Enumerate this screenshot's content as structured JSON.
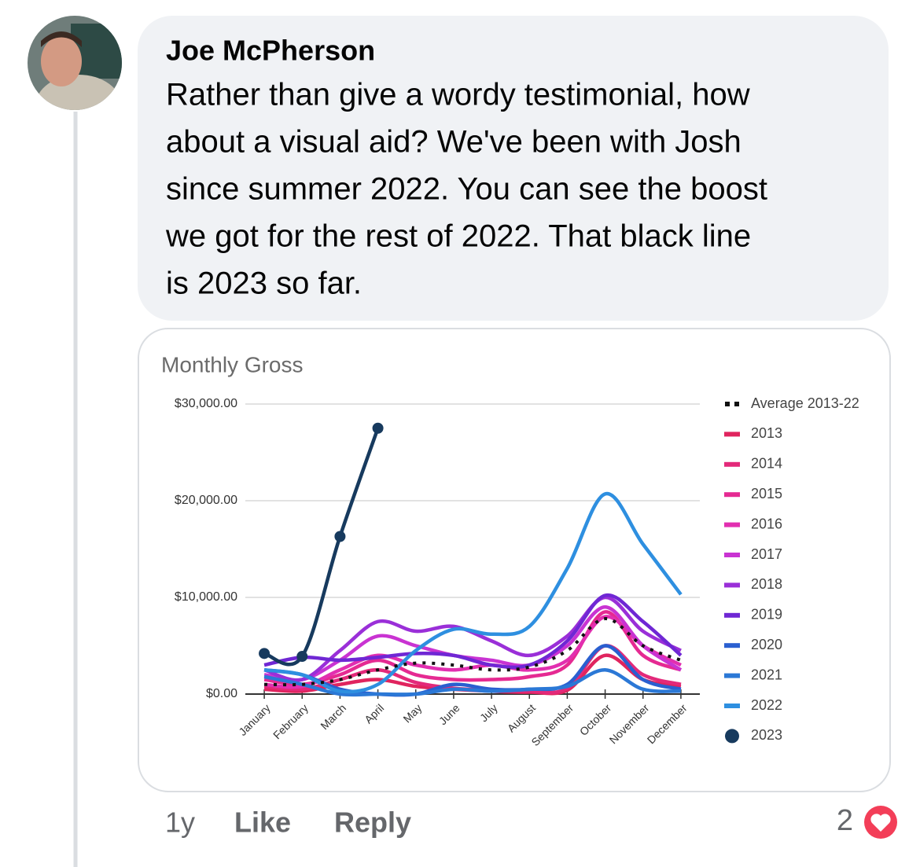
{
  "comment": {
    "author": "Joe McPherson",
    "body_lines": [
      "Rather than give a wordy testimonial, how",
      "about a visual aid? We've been with Josh",
      "since summer 2022. You can see the boost",
      "we got for the rest of 2022. That black line",
      "is 2023 so far."
    ],
    "time": "1y",
    "like": "Like",
    "reply": "Reply",
    "reactions": 2
  },
  "chart_data": {
    "type": "line",
    "title": "Monthly Gross",
    "categories": [
      "January",
      "February",
      "March",
      "April",
      "May",
      "June",
      "July",
      "August",
      "September",
      "October",
      "November",
      "December"
    ],
    "ylim": [
      0,
      30000
    ],
    "yticks": [
      {
        "value": 0,
        "label": "$0.00"
      },
      {
        "value": 10000,
        "label": "$10,000.00"
      },
      {
        "value": 20000,
        "label": "$20,000.00"
      },
      {
        "value": 30000,
        "label": "$30,000.00"
      }
    ],
    "grid": true,
    "legend": "right",
    "series": [
      {
        "name": "Average 2013-22",
        "color": "#111111",
        "style": "dotted",
        "values": [
          1000,
          1000,
          1500,
          2500,
          3200,
          3000,
          2500,
          2800,
          4500,
          7800,
          5000,
          3500
        ]
      },
      {
        "name": "2013",
        "color": "#e0245e",
        "values": [
          500,
          300,
          1000,
          1500,
          800,
          500,
          300,
          200,
          400,
          4000,
          1500,
          800
        ]
      },
      {
        "name": "2014",
        "color": "#e3297a",
        "values": [
          800,
          500,
          1500,
          2500,
          1200,
          600,
          400,
          300,
          600,
          5000,
          2000,
          1000
        ]
      },
      {
        "name": "2015",
        "color": "#e52a92",
        "values": [
          1500,
          1000,
          2000,
          3500,
          2000,
          1500,
          1500,
          1800,
          3000,
          8500,
          4000,
          2500
        ]
      },
      {
        "name": "2016",
        "color": "#e22fb0",
        "values": [
          1000,
          800,
          2500,
          4000,
          3000,
          2500,
          3000,
          2500,
          3500,
          8000,
          5000,
          3000
        ]
      },
      {
        "name": "2017",
        "color": "#c933d2",
        "values": [
          2000,
          1500,
          3500,
          6000,
          5000,
          4000,
          3500,
          3000,
          5000,
          9000,
          5000,
          2500
        ]
      },
      {
        "name": "2018",
        "color": "#9a2fd8",
        "values": [
          2500,
          1500,
          4500,
          7500,
          6500,
          7000,
          5500,
          4000,
          6000,
          10000,
          6500,
          4500
        ]
      },
      {
        "name": "2019",
        "color": "#6f27d4",
        "values": [
          3000,
          3800,
          3500,
          3800,
          4200,
          4000,
          3000,
          3000,
          5500,
          10200,
          7500,
          4000
        ]
      },
      {
        "name": "2020",
        "color": "#2a5fd0",
        "values": [
          2500,
          2000,
          500,
          0,
          0,
          1000,
          500,
          500,
          1000,
          5000,
          1500,
          500
        ]
      },
      {
        "name": "2021",
        "color": "#2b78d6",
        "values": [
          1800,
          1000,
          0,
          0,
          0,
          500,
          300,
          500,
          800,
          2500,
          500,
          300
        ]
      },
      {
        "name": "2022",
        "color": "#2e8fe0",
        "values": [
          2500,
          2000,
          300,
          1000,
          4500,
          6700,
          6200,
          7000,
          13000,
          20700,
          15500,
          10300
        ]
      },
      {
        "name": "2023",
        "color": "#173a5e",
        "markers": true,
        "values": [
          4200,
          3900,
          16300,
          27500,
          null,
          null,
          null,
          null,
          null,
          null,
          null,
          null
        ]
      }
    ]
  }
}
